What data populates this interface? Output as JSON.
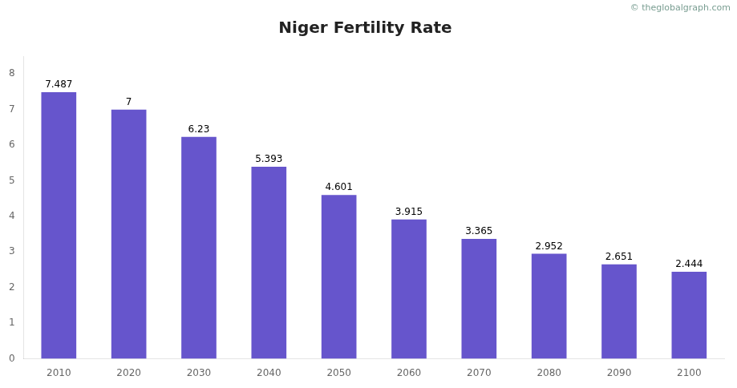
{
  "chart_data": {
    "type": "bar",
    "title": "Niger Fertility Rate",
    "categories": [
      "2010",
      "2020",
      "2030",
      "2040",
      "2050",
      "2060",
      "2070",
      "2080",
      "2090",
      "2100"
    ],
    "values": [
      7.487,
      7.0,
      6.23,
      5.393,
      4.601,
      3.915,
      3.365,
      2.952,
      2.651,
      2.444
    ],
    "color": "#6655cc",
    "ylim": [
      0,
      8.5
    ],
    "yticks": [
      0,
      1,
      2,
      3,
      4,
      5,
      6,
      7,
      8
    ],
    "grid": false,
    "legend": false,
    "data_labels": true,
    "annotations": [
      "© theglobalgraph.com"
    ]
  }
}
